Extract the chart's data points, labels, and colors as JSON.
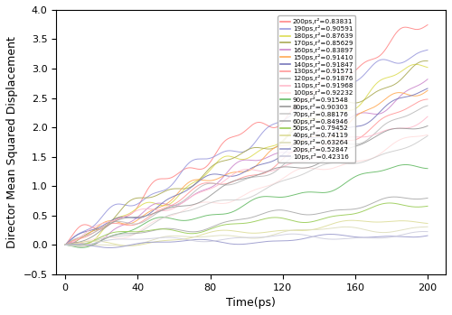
{
  "series": [
    {
      "label": "200ps,r²=0.83831",
      "final_y": 3.8,
      "noise": 0.12,
      "color": "#FF8888",
      "freq": 0.14
    },
    {
      "label": "190ps,r²=0.90591",
      "final_y": 3.3,
      "noise": 0.1,
      "color": "#9999DD",
      "freq": 0.13
    },
    {
      "label": "180ps,r²=0.87639",
      "final_y": 3.15,
      "noise": 0.1,
      "color": "#DDDD55",
      "freq": 0.13
    },
    {
      "label": "170ps,r²=0.85629",
      "final_y": 3.0,
      "noise": 0.09,
      "color": "#AAAA55",
      "freq": 0.12
    },
    {
      "label": "160ps,r²=0.83897",
      "final_y": 2.85,
      "noise": 0.09,
      "color": "#CC88CC",
      "freq": 0.12
    },
    {
      "label": "150ps,r²=0.91410",
      "final_y": 2.7,
      "noise": 0.09,
      "color": "#FFAA55",
      "freq": 0.12
    },
    {
      "label": "140ps,r²=0.91847",
      "final_y": 2.55,
      "noise": 0.08,
      "color": "#7777BB",
      "freq": 0.11
    },
    {
      "label": "130ps,r²=0.91571",
      "final_y": 2.4,
      "noise": 0.08,
      "color": "#FF9999",
      "freq": 0.11
    },
    {
      "label": "120ps,r²=0.91876",
      "final_y": 2.25,
      "noise": 0.08,
      "color": "#BBBBBB",
      "freq": 0.11
    },
    {
      "label": "110ps,r²=0.91968",
      "final_y": 2.1,
      "noise": 0.08,
      "color": "#FFBBCC",
      "freq": 0.1
    },
    {
      "label": "100ps,r²=0.92232",
      "final_y": 1.95,
      "noise": 0.07,
      "color": "#FFDDDD",
      "freq": 0.1
    },
    {
      "label": "90ps,r²=0.91548",
      "final_y": 1.4,
      "noise": 0.07,
      "color": "#66BB66",
      "freq": 0.1
    },
    {
      "label": "80ps,r²=0.90303",
      "final_y": 2.05,
      "noise": 0.07,
      "color": "#999999",
      "freq": 0.09
    },
    {
      "label": "70ps,r²=0.88176",
      "final_y": 1.9,
      "noise": 0.06,
      "color": "#CCCCCC",
      "freq": 0.09
    },
    {
      "label": "60ps,r²=0.84946",
      "final_y": 0.8,
      "noise": 0.06,
      "color": "#AAAAAA",
      "freq": 0.09
    },
    {
      "label": "50ps,r²=0.79452",
      "final_y": 0.62,
      "noise": 0.06,
      "color": "#99CC55",
      "freq": 0.09
    },
    {
      "label": "40ps,r²=0.74119",
      "final_y": 0.47,
      "noise": 0.05,
      "color": "#DDDD99",
      "freq": 0.08
    },
    {
      "label": "30ps,r²=0.63264",
      "final_y": 0.33,
      "noise": 0.05,
      "color": "#DDDDBB",
      "freq": 0.08
    },
    {
      "label": "20ps,r²=0.52847",
      "final_y": 0.2,
      "noise": 0.04,
      "color": "#9999CC",
      "freq": 0.08
    },
    {
      "label": "10ps,r²=0.42316",
      "final_y": 0.12,
      "noise": 0.04,
      "color": "#CCCCDD",
      "freq": 0.08
    }
  ],
  "xlabel": "Time(ps)",
  "ylabel": "Director Mean Squared Displacement",
  "xlim": [
    -5,
    210
  ],
  "ylim": [
    -0.5,
    4.0
  ],
  "xticks": [
    0,
    40,
    80,
    120,
    160,
    200
  ],
  "yticks": [
    -0.5,
    0.0,
    0.5,
    1.0,
    1.5,
    2.0,
    2.5,
    3.0,
    3.5,
    4.0
  ],
  "legend_fontsize": 5.2,
  "axis_fontsize": 9,
  "tick_fontsize": 8,
  "n_points": 1000,
  "total_time": 200,
  "seed": 7
}
